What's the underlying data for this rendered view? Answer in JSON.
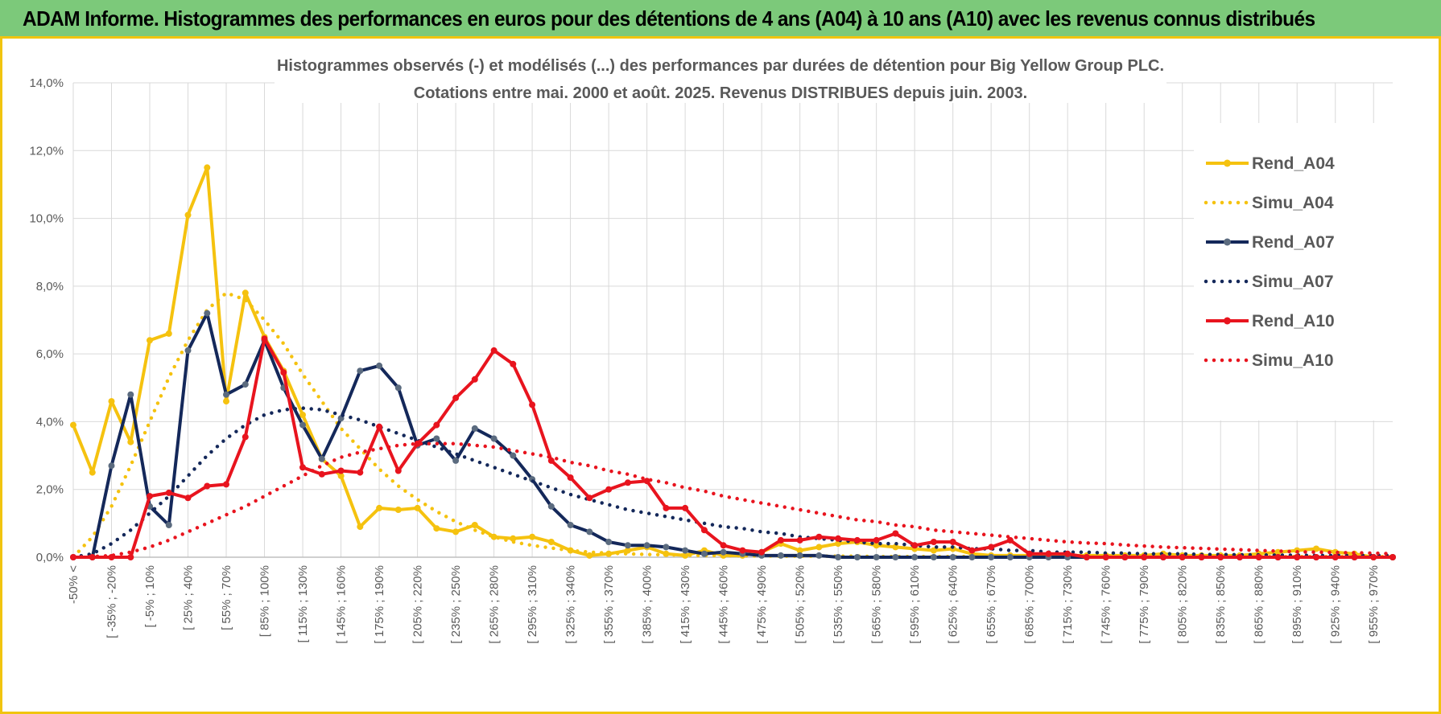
{
  "header": {
    "title": "ADAM Informe. Histogrammes des performances en euros pour des détentions de 4 ans (A04) à 10 ans (A10) avec les revenus connus distribués"
  },
  "chart_data": {
    "type": "line",
    "title": "Histogrammes observés (-) et modélisés (...) des performances par durées de détention pour Big Yellow Group PLC.",
    "subtitle": "Cotations entre mai. 2000 et août. 2025.  Revenus DISTRIBUES depuis juin. 2003.",
    "xlabel": "",
    "ylabel": "",
    "ylim": [
      0,
      14
    ],
    "y_ticks": [
      "0,0%",
      "2,0%",
      "4,0%",
      "6,0%",
      "8,0%",
      "10,0%",
      "12,0%",
      "14,0%"
    ],
    "x_tick_labels": [
      "-50% <",
      "[ -35% ; -20%",
      "[ -5% ; 10%",
      "[ 25% ; 40%",
      "[ 55% ; 70%",
      "[ 85% ; 100%",
      "[ 115% ; 130%",
      "[ 145% ; 160%",
      "[ 175% ; 190%",
      "[ 205% ; 220%",
      "[ 235% ; 250%",
      "[ 265% ; 280%",
      "[ 295% ; 310%",
      "[ 325% ; 340%",
      "[ 355% ; 370%",
      "[ 385% ; 400%",
      "[ 415% ; 430%",
      "[ 445% ; 460%",
      "[ 475% ; 490%",
      "[ 505% ; 520%",
      "[ 535% ; 550%",
      "[ 565% ; 580%",
      "[ 595% ; 610%",
      "[ 625% ; 640%",
      "[ 655% ; 670%",
      "[ 685% ; 700%",
      "[ 715% ; 730%",
      "[ 745% ; 760%",
      "[ 775% ; 790%",
      "[ 805% ; 820%",
      "[ 835% ; 850%",
      "[ 865% ; 880%",
      "[ 895% ; 910%",
      "[ 925% ; 940%",
      "[ 955% ; 970%"
    ],
    "grid": true,
    "legend_position": "right",
    "series": [
      {
        "name": "Rend_A04",
        "style": "solid",
        "markers": true,
        "color": "#f5c20f",
        "values": [
          3.9,
          2.5,
          4.6,
          3.4,
          6.4,
          6.6,
          10.1,
          11.5,
          4.6,
          7.8,
          6.5,
          5.5,
          4.2,
          2.9,
          2.4,
          0.9,
          1.45,
          1.4,
          1.45,
          0.85,
          0.75,
          0.95,
          0.6,
          0.55,
          0.6,
          0.45,
          0.2,
          0.05,
          0.1,
          0.2,
          0.3,
          0.1,
          0.05,
          0.2,
          0.05,
          0.05,
          0.15,
          0.4,
          0.2,
          0.3,
          0.4,
          0.45,
          0.35,
          0.3,
          0.25,
          0.2,
          0.25,
          0.1,
          0.05,
          0.05,
          0.05,
          0.05,
          0.05,
          0.05,
          0.05,
          0.05,
          0.05,
          0.1,
          0.05,
          0.05,
          0.05,
          0.05,
          0.1,
          0.15,
          0.2,
          0.25,
          0.15,
          0.1,
          0.0,
          0.0
        ]
      },
      {
        "name": "Simu_A04",
        "style": "dotted",
        "markers": false,
        "color": "#f5c20f",
        "values": [
          0.0,
          0.6,
          1.5,
          2.7,
          4.0,
          5.3,
          6.4,
          7.3,
          7.8,
          7.6,
          7.0,
          6.3,
          5.4,
          4.6,
          3.8,
          3.2,
          2.6,
          2.1,
          1.7,
          1.35,
          1.05,
          0.8,
          0.6,
          0.45,
          0.35,
          0.27,
          0.2,
          0.15,
          0.12,
          0.1,
          0.08,
          0.07,
          0.06,
          0.05,
          0.05,
          0.04,
          0.04,
          0.03,
          0.03,
          0.03,
          0.03,
          0.03,
          0.02,
          0.02,
          0.02,
          0.02,
          0.02,
          0.02,
          0.02,
          0.02,
          0.02,
          0.02,
          0.02,
          0.02,
          0.02,
          0.02,
          0.02,
          0.02,
          0.02,
          0.02,
          0.02,
          0.02,
          0.02,
          0.02,
          0.02,
          0.02,
          0.02,
          0.02,
          0.02,
          0.02
        ]
      },
      {
        "name": "Rend_A07",
        "style": "solid",
        "markers": true,
        "color": "#14285a",
        "values": [
          0.0,
          0.0,
          2.7,
          4.8,
          1.5,
          0.95,
          6.1,
          7.2,
          4.8,
          5.1,
          6.4,
          5.0,
          3.9,
          2.9,
          4.1,
          5.5,
          5.65,
          5.0,
          3.3,
          3.5,
          2.85,
          3.8,
          3.5,
          3.0,
          2.3,
          1.5,
          0.95,
          0.75,
          0.45,
          0.35,
          0.35,
          0.3,
          0.2,
          0.1,
          0.15,
          0.1,
          0.05,
          0.05,
          0.05,
          0.05,
          0.0,
          0.0,
          0.0,
          0.0,
          0.0,
          0.0,
          0.0,
          0.0,
          0.0,
          0.0,
          0.0,
          0.0,
          0.0,
          0.0,
          0.0,
          0.0,
          0.0,
          0.0,
          0.0,
          0.0,
          0.0,
          0.0,
          0.0,
          0.0,
          0.0,
          0.0,
          0.0,
          0.0,
          0.0,
          0.0
        ]
      },
      {
        "name": "Simu_A07",
        "style": "dotted",
        "markers": false,
        "color": "#14285a",
        "values": [
          0.0,
          0.1,
          0.4,
          0.8,
          1.3,
          1.8,
          2.4,
          3.0,
          3.5,
          3.9,
          4.2,
          4.35,
          4.4,
          4.35,
          4.2,
          4.05,
          3.85,
          3.65,
          3.45,
          3.25,
          3.05,
          2.85,
          2.65,
          2.45,
          2.25,
          2.05,
          1.85,
          1.7,
          1.55,
          1.4,
          1.3,
          1.2,
          1.1,
          1.0,
          0.9,
          0.85,
          0.75,
          0.7,
          0.6,
          0.55,
          0.5,
          0.45,
          0.4,
          0.4,
          0.35,
          0.3,
          0.3,
          0.25,
          0.25,
          0.2,
          0.2,
          0.15,
          0.15,
          0.15,
          0.12,
          0.12,
          0.1,
          0.1,
          0.1,
          0.08,
          0.08,
          0.07,
          0.07,
          0.06,
          0.06,
          0.05,
          0.05,
          0.05,
          0.05,
          0.05
        ]
      },
      {
        "name": "Rend_A10",
        "style": "solid",
        "markers": true,
        "color": "#e8141e",
        "values": [
          0.0,
          0.0,
          0.0,
          0.0,
          1.8,
          1.9,
          1.75,
          2.1,
          2.15,
          3.55,
          6.45,
          5.45,
          2.65,
          2.45,
          2.55,
          2.5,
          3.85,
          2.55,
          3.35,
          3.9,
          4.7,
          5.25,
          6.1,
          5.7,
          4.5,
          2.85,
          2.35,
          1.75,
          2.0,
          2.2,
          2.25,
          1.45,
          1.45,
          0.8,
          0.35,
          0.2,
          0.15,
          0.5,
          0.5,
          0.6,
          0.55,
          0.5,
          0.5,
          0.7,
          0.35,
          0.45,
          0.45,
          0.2,
          0.3,
          0.5,
          0.1,
          0.1,
          0.1,
          0.0,
          0.0,
          0.0,
          0.0,
          0.0,
          0.0,
          0.0,
          0.0,
          0.0,
          0.0,
          0.0,
          0.0,
          0.0,
          0.0,
          0.0,
          0.0,
          0.0
        ]
      },
      {
        "name": "Simu_A10",
        "style": "dotted",
        "markers": false,
        "color": "#e8141e",
        "values": [
          0.0,
          0.02,
          0.05,
          0.15,
          0.3,
          0.5,
          0.75,
          1.0,
          1.25,
          1.5,
          1.8,
          2.1,
          2.4,
          2.7,
          2.95,
          3.1,
          3.2,
          3.3,
          3.35,
          3.35,
          3.35,
          3.3,
          3.25,
          3.15,
          3.05,
          2.95,
          2.8,
          2.7,
          2.55,
          2.45,
          2.3,
          2.2,
          2.05,
          1.95,
          1.8,
          1.7,
          1.6,
          1.5,
          1.4,
          1.3,
          1.2,
          1.1,
          1.05,
          0.95,
          0.9,
          0.8,
          0.75,
          0.7,
          0.65,
          0.6,
          0.55,
          0.5,
          0.45,
          0.42,
          0.4,
          0.36,
          0.33,
          0.3,
          0.28,
          0.26,
          0.24,
          0.22,
          0.2,
          0.18,
          0.16,
          0.15,
          0.14,
          0.13,
          0.12,
          0.1
        ]
      }
    ]
  }
}
